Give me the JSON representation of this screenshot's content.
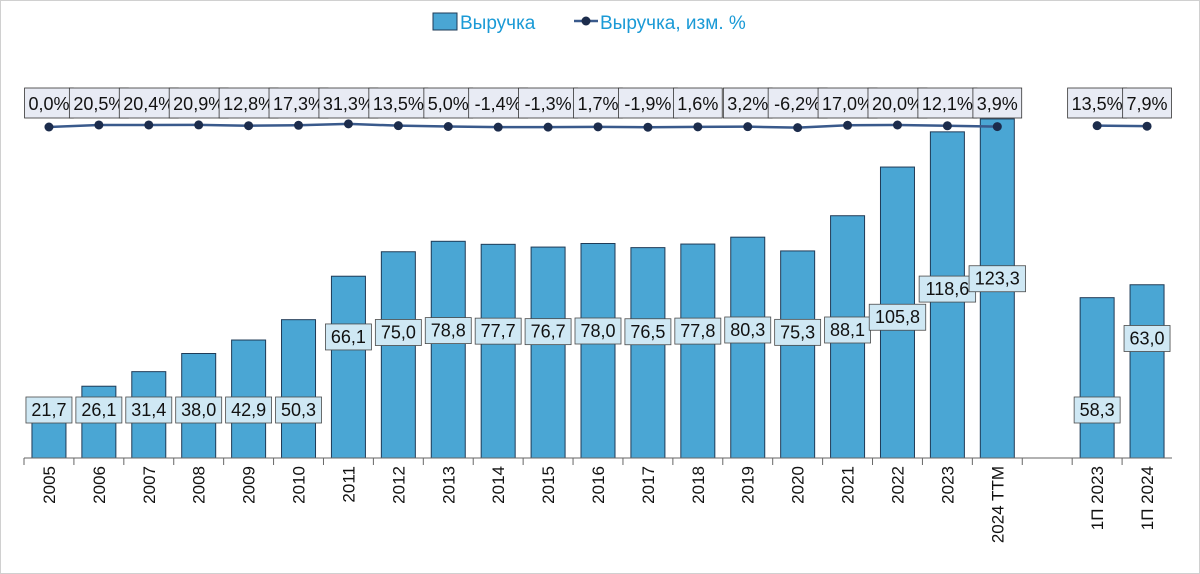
{
  "chart_data": {
    "type": "bar",
    "categories": [
      "2005",
      "2006",
      "2007",
      "2008",
      "2009",
      "2010",
      "2011",
      "2012",
      "2013",
      "2014",
      "2015",
      "2016",
      "2017",
      "2018",
      "2019",
      "2020",
      "2021",
      "2022",
      "2023",
      "2024 TTM",
      "",
      "1П 2023",
      "1П 2024"
    ],
    "series": [
      {
        "name": "Выручка",
        "type": "bar",
        "values": [
          21.7,
          26.1,
          31.4,
          38.0,
          42.9,
          50.3,
          66.1,
          75.0,
          78.8,
          77.7,
          76.7,
          78.0,
          76.5,
          77.8,
          80.3,
          75.3,
          88.1,
          105.8,
          118.6,
          123.3,
          null,
          58.3,
          63.0
        ],
        "labels": [
          "21,7",
          "26,1",
          "31,4",
          "38,0",
          "42,9",
          "50,3",
          "66,1",
          "75,0",
          "78,8",
          "77,7",
          "76,7",
          "78,0",
          "76,5",
          "77,8",
          "80,3",
          "75,3",
          "88,1",
          "105,8",
          "118,6",
          "123,3",
          "",
          "58,3",
          "63,0"
        ],
        "color": "#4aa6d4"
      },
      {
        "name": "Выручка, изм. %",
        "type": "line",
        "values": [
          0.0,
          20.5,
          20.4,
          20.9,
          12.8,
          17.3,
          31.3,
          13.5,
          5.0,
          -1.4,
          -1.3,
          1.7,
          -1.9,
          1.6,
          3.2,
          -6.2,
          17.0,
          20.0,
          12.1,
          3.9,
          null,
          13.5,
          7.9
        ],
        "labels": [
          "0,0%",
          "20,5%",
          "20,4%",
          "20,9%",
          "12,8%",
          "17,3%",
          "31,3%",
          "13,5%",
          "5,0%",
          "-1,4%",
          "-1,3%",
          "1,7%",
          "-1,9%",
          "1,6%",
          "3,2%",
          "-6,2%",
          "17,0%",
          "20,0%",
          "12,1%",
          "3,9%",
          "",
          "13,5%",
          "7,9%"
        ],
        "color": "#1c2c4c"
      }
    ],
    "legend": "top-center",
    "grid": false
  }
}
